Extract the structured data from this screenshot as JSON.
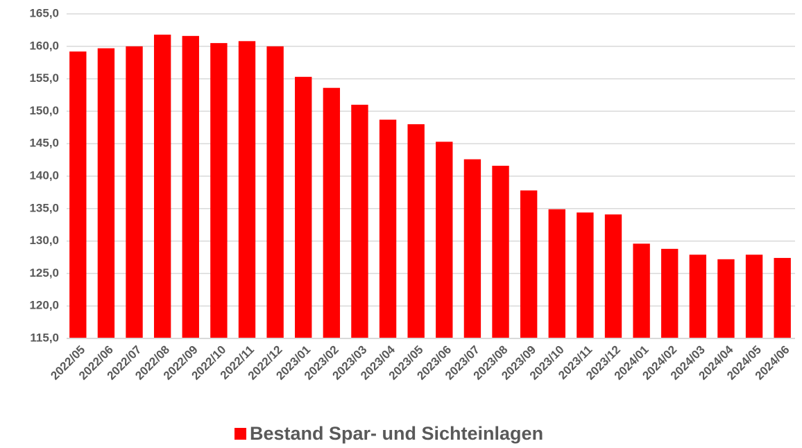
{
  "chart_data": {
    "type": "bar",
    "categories": [
      "2022/05",
      "2022/06",
      "2022/07",
      "2022/08",
      "2022/09",
      "2022/10",
      "2022/11",
      "2022/12",
      "2023/01",
      "2023/02",
      "2023/03",
      "2023/04",
      "2023/05",
      "2023/06",
      "2023/07",
      "2023/08",
      "2023/09",
      "2023/10",
      "2023/11",
      "2023/12",
      "2024/01",
      "2024/02",
      "2024/03",
      "2024/04",
      "2024/05",
      "2024/06"
    ],
    "series": [
      {
        "name": "Bestand Spar- und Sichteinlagen",
        "color": "#ff0000",
        "values": [
          159.2,
          159.7,
          160.0,
          161.8,
          161.6,
          160.5,
          160.8,
          160.0,
          155.3,
          153.6,
          151.0,
          148.7,
          148.0,
          145.3,
          142.6,
          141.6,
          137.8,
          134.9,
          134.4,
          134.1,
          129.6,
          128.8,
          127.9,
          127.2,
          127.9,
          127.4
        ]
      }
    ],
    "ylim": [
      115,
      165
    ],
    "yticks": [
      {
        "value": 115,
        "label": "115,0"
      },
      {
        "value": 120,
        "label": "120,0"
      },
      {
        "value": 125,
        "label": "125,0"
      },
      {
        "value": 130,
        "label": "130,0"
      },
      {
        "value": 135,
        "label": "135,0"
      },
      {
        "value": 140,
        "label": "140,0"
      },
      {
        "value": 145,
        "label": "145,0"
      },
      {
        "value": 150,
        "label": "150,0"
      },
      {
        "value": 155,
        "label": "155,0"
      },
      {
        "value": 160,
        "label": "160,0"
      },
      {
        "value": 165,
        "label": "165,0"
      }
    ],
    "grid": true,
    "legend": "bottom"
  }
}
